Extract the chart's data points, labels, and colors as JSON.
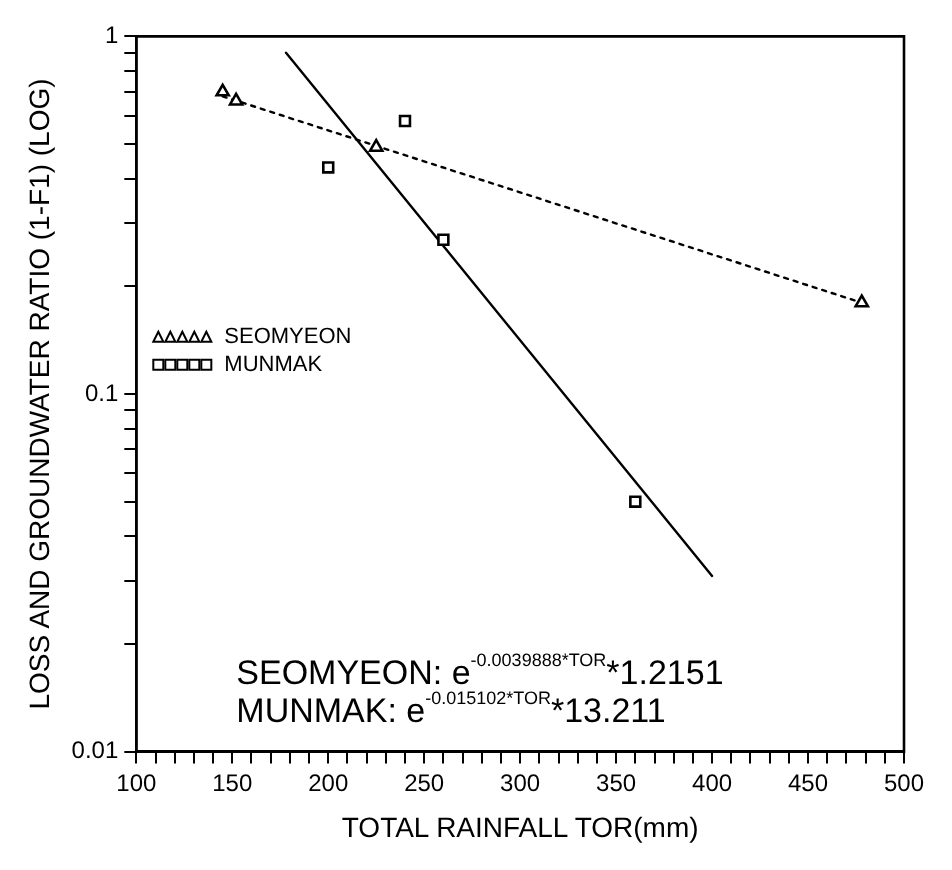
{
  "chart_data": {
    "type": "scatter",
    "xlabel": "TOTAL RAINFALL TOR(mm)",
    "ylabel": "LOSS AND GROUNDWATER RATIO (1-F1) (LOG)",
    "series": [
      {
        "name": "SEOMYEON",
        "color": "#000000",
        "marker": "triangle",
        "x": [
          145,
          152,
          225,
          478
        ],
        "values": [
          0.7,
          0.66,
          0.49,
          0.18
        ]
      },
      {
        "name": "MUNMAK",
        "color": "#000000",
        "marker": "square",
        "x": [
          200,
          240,
          260,
          360
        ],
        "values": [
          0.43,
          0.58,
          0.27,
          0.05
        ]
      },
      {
        "type": "line",
        "color": "#000000",
        "line_style": "dotted",
        "marker": "none",
        "x": [
          145,
          478
        ],
        "values": [
          0.68,
          0.18
        ]
      },
      {
        "type": "line",
        "color": "#000000",
        "line_style": "solid",
        "marker": "none",
        "x": [
          178,
          400
        ],
        "values": [
          0.9,
          0.031
        ]
      }
    ],
    "annotations": [
      "SEOMYEON: e$^{-0.0039888*TOR}$*1.2151",
      "MUNMAK: e$^{-0.015102*TOR}$*13.211"
    ],
    "log": "y",
    "xlim": [
      100,
      500
    ],
    "xticks": [
      100,
      {
        "value": 110,
        "label": null
      },
      {
        "value": 120,
        "label": null
      },
      {
        "value": 130,
        "label": null
      },
      {
        "value": 140,
        "label": null
      },
      150,
      {
        "value": 160,
        "label": null
      },
      {
        "value": 170,
        "label": null
      },
      {
        "value": 180,
        "label": null
      },
      {
        "value": 190,
        "label": null
      },
      200,
      {
        "value": 210,
        "label": null
      },
      {
        "value": 220,
        "label": null
      },
      {
        "value": 230,
        "label": null
      },
      {
        "value": 240,
        "label": null
      },
      250,
      {
        "value": 260,
        "label": null
      },
      {
        "value": 270,
        "label": null
      },
      {
        "value": 280,
        "label": null
      },
      {
        "value": 290,
        "label": null
      },
      300,
      {
        "value": 310,
        "label": null
      },
      {
        "value": 320,
        "label": null
      },
      {
        "value": 330,
        "label": null
      },
      {
        "value": 340,
        "label": null
      },
      350,
      {
        "value": 360,
        "label": null
      },
      {
        "value": 370,
        "label": null
      },
      {
        "value": 380,
        "label": null
      },
      {
        "value": 390,
        "label": null
      },
      400,
      {
        "value": 410,
        "label": null
      },
      {
        "value": 420,
        "label": null
      },
      {
        "value": 430,
        "label": null
      },
      {
        "value": 440,
        "label": null
      },
      450,
      {
        "value": 460,
        "label": null
      },
      {
        "value": 470,
        "label": null
      },
      {
        "value": 480,
        "label": null
      },
      {
        "value": 490,
        "label": null
      },
      500
    ],
    "ylim": [
      0.01,
      1
    ],
    "yticks": [
      0.01,
      {
        "value": 0.02,
        "label": null
      },
      {
        "value": 0.03,
        "label": null
      },
      {
        "value": 0.04,
        "label": null
      },
      {
        "value": 0.05,
        "label": null
      },
      {
        "value": 0.06,
        "label": null
      },
      {
        "value": 0.07,
        "label": null
      },
      {
        "value": 0.08,
        "label": null
      },
      {
        "value": 0.09,
        "label": null
      },
      0.1,
      {
        "value": 0.2,
        "label": null
      },
      {
        "value": 0.3,
        "label": null
      },
      {
        "value": 0.4,
        "label": null
      },
      {
        "value": 0.5,
        "label": null
      },
      {
        "value": 0.6,
        "label": null
      },
      {
        "value": 0.7,
        "label": null
      },
      {
        "value": 0.8,
        "label": null
      },
      {
        "value": 0.9,
        "label": null
      },
      1
    ],
    "grid": false,
    "legend": "left"
  }
}
